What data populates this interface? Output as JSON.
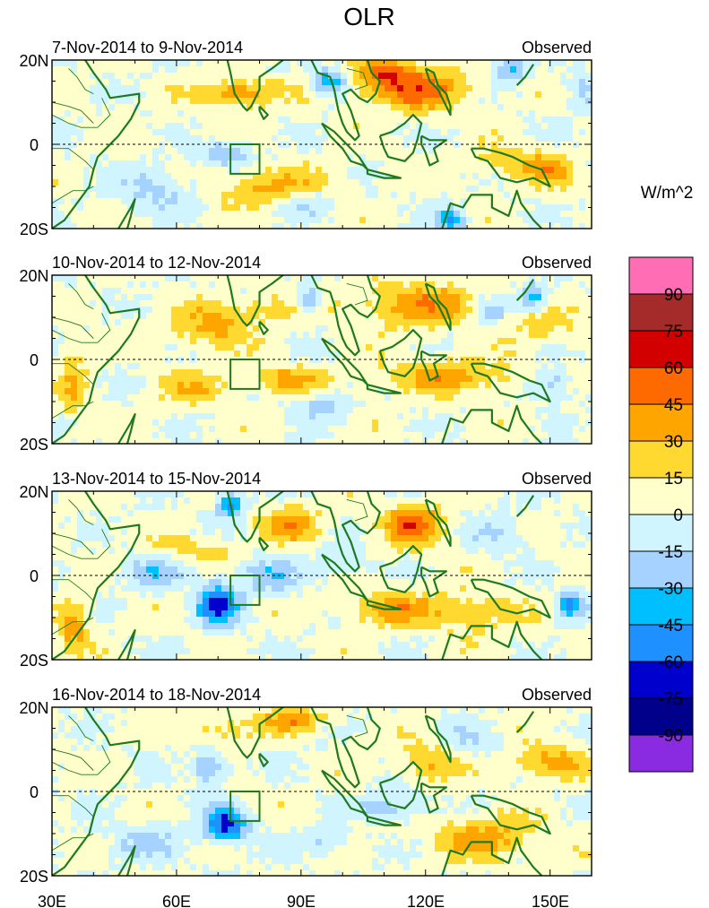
{
  "figure": {
    "title": "OLR",
    "units": "W/m^2"
  },
  "panels": [
    {
      "period": "7-Nov-2014 to 9-Nov-2014",
      "source": "Observed",
      "seed": 11
    },
    {
      "period": "10-Nov-2014 to 12-Nov-2014",
      "source": "Observed",
      "seed": 23
    },
    {
      "period": "13-Nov-2014 to 15-Nov-2014",
      "source": "Observed",
      "seed": 37
    },
    {
      "period": "16-Nov-2014 to 18-Nov-2014",
      "source": "Observed",
      "seed": 53
    }
  ],
  "axes": {
    "y_labels": [
      "20N",
      "0",
      "20S"
    ],
    "x_labels": [
      "30E",
      "60E",
      "90E",
      "120E",
      "150E"
    ],
    "lon_range": [
      30,
      160
    ],
    "lat_range": [
      -20,
      20
    ]
  },
  "colorbar": {
    "labels": [
      "90",
      "75",
      "60",
      "45",
      "30",
      "15",
      "0",
      "-15",
      "-30",
      "-45",
      "-60",
      "-75",
      "-90"
    ],
    "colors": [
      "#ff6eb4",
      "#a52a2a",
      "#d30000",
      "#ff6a00",
      "#ffa500",
      "#ffd92f",
      "#ffffcc",
      "#d0f5ff",
      "#a6d2ff",
      "#00bfff",
      "#1e90ff",
      "#0000cd",
      "#00008b",
      "#8a2be2"
    ]
  },
  "colors": {
    "coast": "#1f7a1f",
    "frame": "#000000"
  }
}
